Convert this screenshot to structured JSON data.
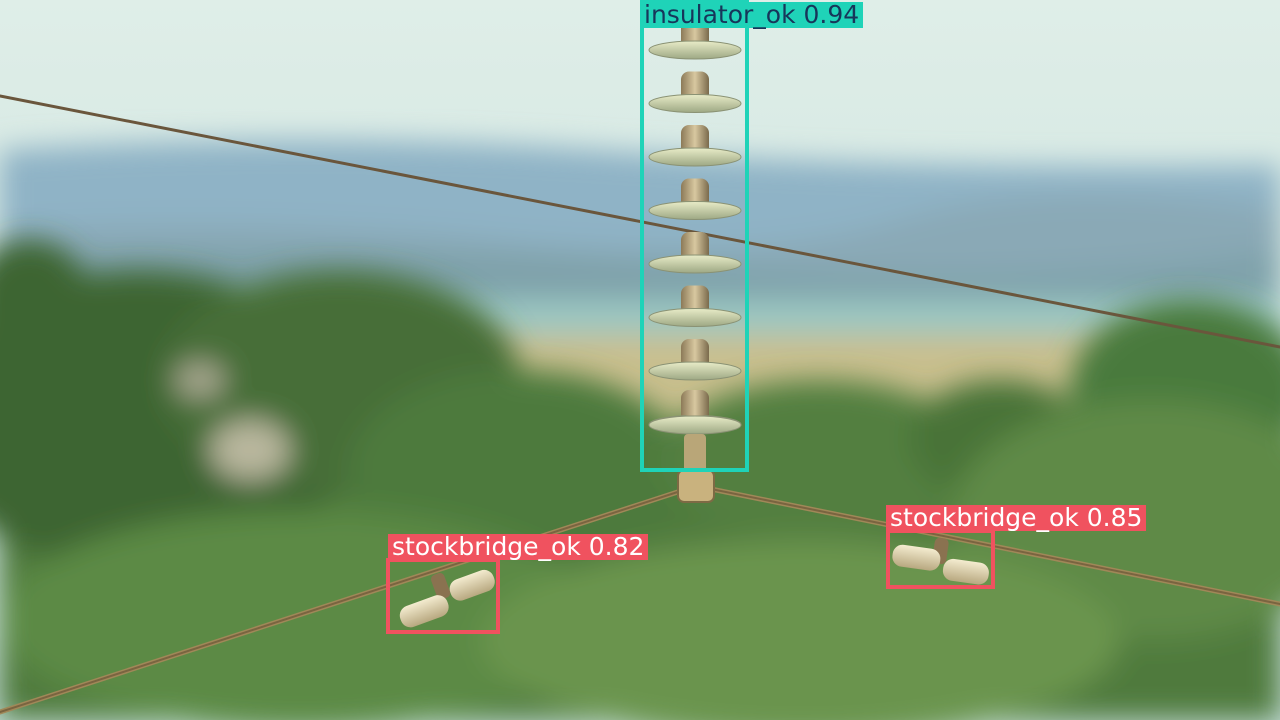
{
  "image": {
    "scene": "Power transmission line with a suspension insulator string and two stockbridge vibration dampers over a blurred green landscape"
  },
  "detections": [
    {
      "label": "insulator_ok 0.94",
      "color": "#1fd3b8",
      "text_color": "#17365a"
    },
    {
      "label": "stockbridge_ok 0.82",
      "color": "#f0525f",
      "text_color": "#ffffff"
    },
    {
      "label": "stockbridge_ok 0.85",
      "color": "#f0525f",
      "text_color": "#ffffff"
    }
  ]
}
